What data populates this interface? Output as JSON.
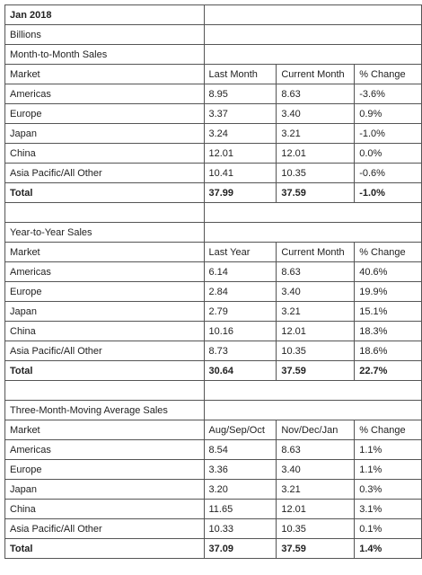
{
  "title": "Jan 2018",
  "units": "Billions",
  "sections": [
    {
      "heading": "Month-to-Month Sales",
      "columns": [
        "Market",
        "Last Month",
        "Current Month",
        "% Change"
      ],
      "rows": [
        [
          "Americas",
          "8.95",
          "8.63",
          "-3.6%"
        ],
        [
          "Europe",
          "3.37",
          "3.40",
          "0.9%"
        ],
        [
          "Japan",
          "3.24",
          "3.21",
          "-1.0%"
        ],
        [
          "China",
          "12.01",
          "12.01",
          "0.0%"
        ],
        [
          "Asia Pacific/All Other",
          "10.41",
          "10.35",
          "-0.6%"
        ]
      ],
      "total": [
        "Total",
        "37.99",
        "37.59",
        "-1.0%"
      ]
    },
    {
      "heading": "Year-to-Year Sales",
      "columns": [
        "Market",
        "Last Year",
        "Current Month",
        "% Change"
      ],
      "rows": [
        [
          "Americas",
          "6.14",
          "8.63",
          "40.6%"
        ],
        [
          "Europe",
          "2.84",
          "3.40",
          "19.9%"
        ],
        [
          "Japan",
          "2.79",
          "3.21",
          "15.1%"
        ],
        [
          "China",
          "10.16",
          "12.01",
          "18.3%"
        ],
        [
          "Asia Pacific/All Other",
          "8.73",
          "10.35",
          "18.6%"
        ]
      ],
      "total": [
        "Total",
        "30.64",
        "37.59",
        "22.7%"
      ]
    },
    {
      "heading": "Three-Month-Moving Average Sales",
      "columns": [
        "Market",
        "Aug/Sep/Oct",
        "Nov/Dec/Jan",
        "% Change"
      ],
      "rows": [
        [
          "Americas",
          "8.54",
          "8.63",
          "1.1%"
        ],
        [
          "Europe",
          "3.36",
          "3.40",
          "1.1%"
        ],
        [
          "Japan",
          "3.20",
          "3.21",
          "0.3%"
        ],
        [
          "China",
          "11.65",
          "12.01",
          "3.1%"
        ],
        [
          "Asia Pacific/All Other",
          "10.33",
          "10.35",
          "0.1%"
        ]
      ],
      "total": [
        "Total",
        "37.09",
        "37.59",
        "1.4%"
      ]
    }
  ]
}
